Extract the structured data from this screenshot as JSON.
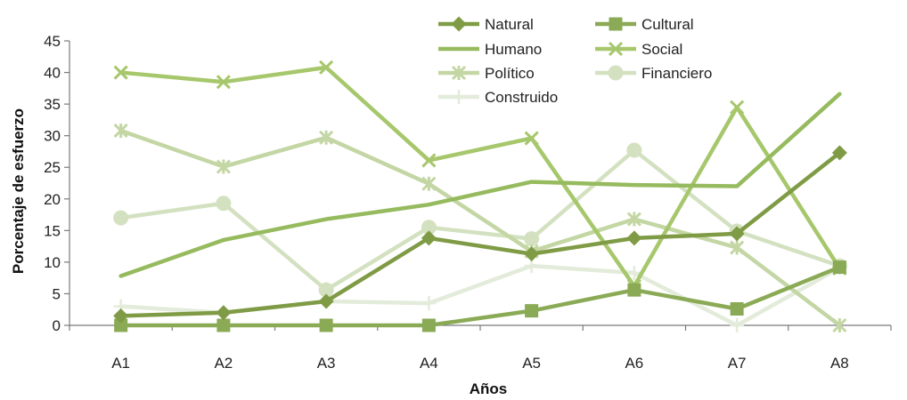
{
  "chart_data": {
    "type": "line",
    "xlabel": "Años",
    "ylabel": "Porcentaje de esfuerzo",
    "categories": [
      "A1",
      "A2",
      "A3",
      "A4",
      "A5",
      "A6",
      "A7",
      "A8"
    ],
    "ylim": [
      0,
      45
    ],
    "yticks": [
      0,
      5,
      10,
      15,
      20,
      25,
      30,
      35,
      40,
      45
    ],
    "grid": false,
    "legend_position": "top-right",
    "series": [
      {
        "name": "Natural",
        "marker": "diamond",
        "color": "#7f9b45",
        "values": [
          1.5,
          2,
          3.8,
          13.8,
          11.3,
          13.8,
          14.5,
          27.3
        ]
      },
      {
        "name": "Cultural",
        "marker": "square",
        "color": "#8aaa55",
        "values": [
          0,
          0,
          0,
          0,
          2.3,
          5.6,
          2.6,
          9.2
        ]
      },
      {
        "name": "Humano",
        "marker": "none",
        "color": "#96ba5e",
        "values": [
          7.8,
          13.5,
          16.8,
          19.1,
          22.7,
          22.2,
          22.0,
          36.6
        ]
      },
      {
        "name": "Social",
        "marker": "x",
        "color": "#a6c76b",
        "values": [
          40.0,
          38.5,
          40.8,
          26.1,
          29.6,
          6.2,
          34.5,
          9.0
        ]
      },
      {
        "name": "Político",
        "marker": "xstar",
        "color": "#c3d6a4",
        "values": [
          30.8,
          25.1,
          29.7,
          22.4,
          11.7,
          16.8,
          12.3,
          0
        ]
      },
      {
        "name": "Financiero",
        "marker": "circle",
        "color": "#d3e1c0",
        "values": [
          17.0,
          19.3,
          5.6,
          15.5,
          13.7,
          27.7,
          14.9,
          9.4
        ]
      },
      {
        "name": "Construido",
        "marker": "plus",
        "color": "#e3ebda",
        "values": [
          3.0,
          2.0,
          3.8,
          3.5,
          9.4,
          8.3,
          0,
          9.1
        ]
      }
    ]
  }
}
